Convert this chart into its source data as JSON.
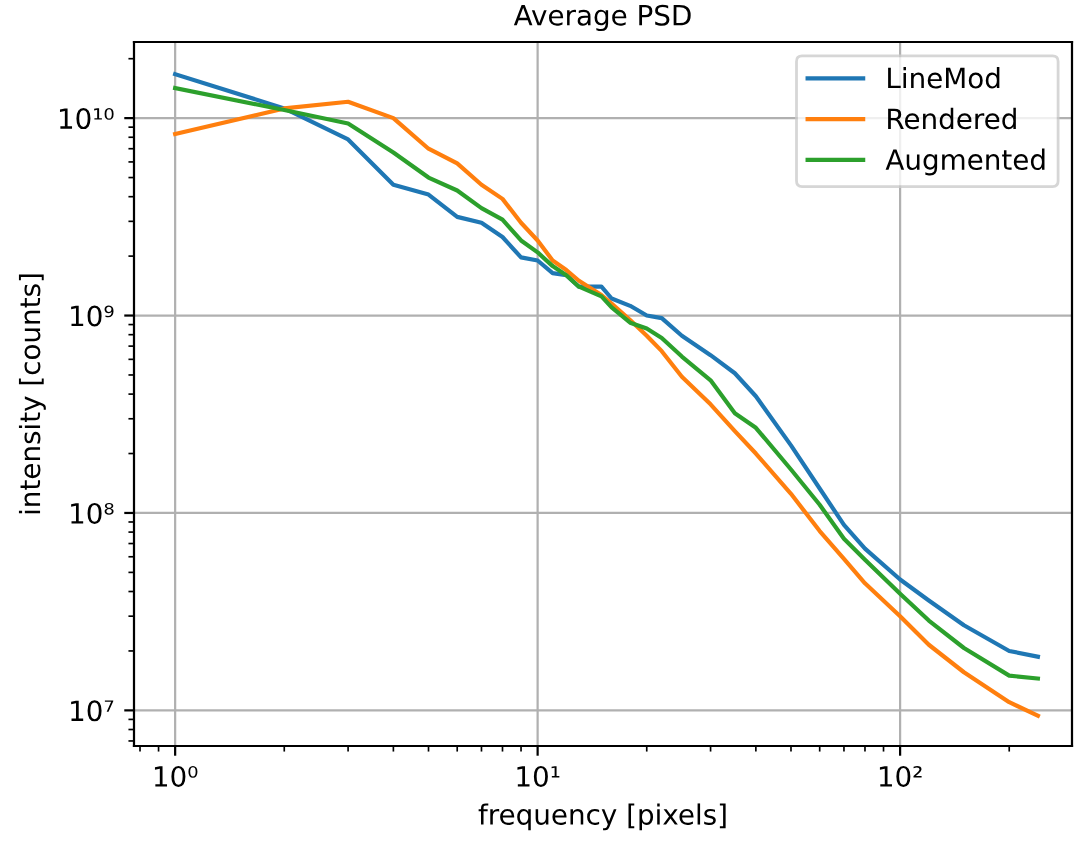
{
  "chart_data": {
    "type": "line",
    "title": "Average PSD",
    "xlabel": "frequency [pixels]",
    "ylabel": "intensity [counts]",
    "log": "xy",
    "x": [
      1,
      2,
      3,
      4,
      5,
      6,
      7,
      8,
      9,
      10,
      11,
      12,
      13,
      15,
      16,
      18,
      20,
      22,
      25,
      30,
      35,
      40,
      50,
      60,
      70,
      80,
      100,
      120,
      150,
      200,
      240
    ],
    "series": [
      {
        "name": "LineMod",
        "color": "#1f77b4",
        "values": [
          16700000000.0,
          11200000000.0,
          7800000000.0,
          4600000000.0,
          4100000000.0,
          3160000000.0,
          2950000000.0,
          2500000000.0,
          1970000000.0,
          1900000000.0,
          1640000000.0,
          1600000000.0,
          1400000000.0,
          1400000000.0,
          1220000000.0,
          1120000000.0,
          1000000000.0,
          970000000.0,
          790000000.0,
          630000000.0,
          510000000.0,
          390000000.0,
          220000000.0,
          133000000.0,
          87000000.0,
          66000000.0,
          46000000.0,
          36000000.0,
          27000000.0,
          20000000.0,
          18700000.0
        ]
      },
      {
        "name": "Rendered",
        "color": "#ff7f0e",
        "values": [
          8300000000.0,
          11200000000.0,
          12100000000.0,
          10000000000.0,
          7000000000.0,
          5900000000.0,
          4600000000.0,
          3900000000.0,
          2950000000.0,
          2400000000.0,
          1900000000.0,
          1700000000.0,
          1500000000.0,
          1270000000.0,
          1150000000.0,
          950000000.0,
          790000000.0,
          660000000.0,
          490000000.0,
          355000000.0,
          260000000.0,
          200000000.0,
          125000000.0,
          81000000.0,
          58500000.0,
          44000000.0,
          30000000.0,
          21500000.0,
          15600000.0,
          11000000.0,
          9400000.0
        ]
      },
      {
        "name": "Augmented",
        "color": "#2ca02c",
        "values": [
          14200000000.0,
          11000000000.0,
          9400000000.0,
          6700000000.0,
          5000000000.0,
          4300000000.0,
          3500000000.0,
          3060000000.0,
          2400000000.0,
          2090000000.0,
          1780000000.0,
          1600000000.0,
          1400000000.0,
          1250000000.0,
          1100000000.0,
          920000000.0,
          860000000.0,
          770000000.0,
          620000000.0,
          470000000.0,
          320000000.0,
          270000000.0,
          166000000.0,
          110000000.0,
          74000000.0,
          58000000.0,
          39000000.0,
          28500000.0,
          20700000.0,
          15000000.0,
          14500000.0
        ]
      }
    ],
    "xlim": [
      0.77,
      298
    ],
    "ylim": [
      6600000.0,
      24300000000.0
    ],
    "xticks": [
      {
        "value": 1,
        "label": "10⁰"
      },
      {
        "value": 10,
        "label": "10¹"
      },
      {
        "value": 100,
        "label": "10²"
      }
    ],
    "yticks": [
      {
        "value": 10000000.0,
        "label": "10⁷"
      },
      {
        "value": 100000000.0,
        "label": "10⁸"
      },
      {
        "value": 1000000000.0,
        "label": "10⁹"
      },
      {
        "value": 10000000000.0,
        "label": "10¹⁰"
      }
    ],
    "grid": true,
    "legend": "top right",
    "line_style": "solid",
    "marker": "none"
  }
}
